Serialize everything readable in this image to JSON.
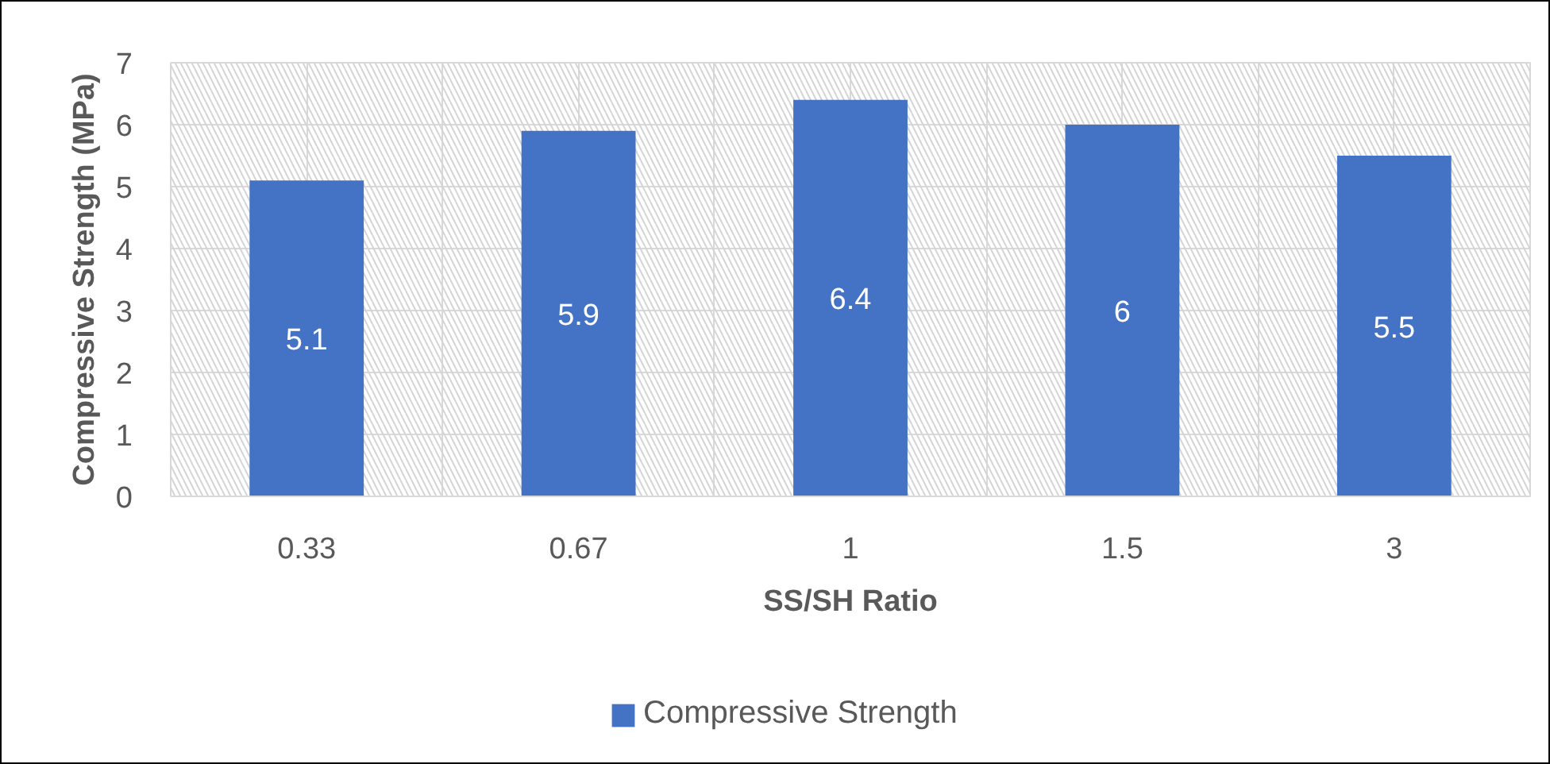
{
  "chart_data": {
    "type": "bar",
    "xlabel": "SS/SH Ratio",
    "ylabel": "Compressive Strength (MPa)",
    "categories": [
      "0.33",
      "0.67",
      "1",
      "1.5",
      "3"
    ],
    "series": [
      {
        "name": "Compressive Strength",
        "color": "#4472c4",
        "values": [
          5.1,
          5.9,
          6.4,
          6,
          5.5
        ]
      }
    ],
    "ylim": [
      0,
      7
    ],
    "yticks": [
      0,
      1,
      2,
      3,
      4,
      5,
      6,
      7
    ],
    "grid": true,
    "legend": "bottom",
    "data_labels": true
  }
}
